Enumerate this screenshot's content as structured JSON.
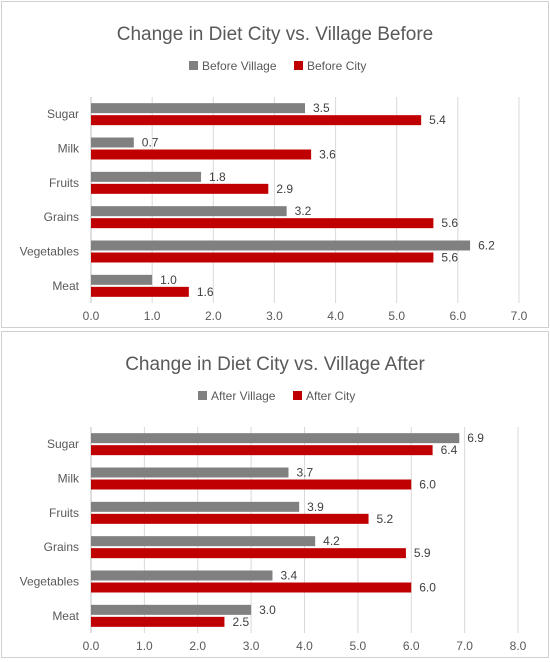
{
  "chart_data": [
    {
      "type": "bar",
      "orientation": "horizontal",
      "title": "Change in Diet City vs. Village Before",
      "categories": [
        "Sugar",
        "Milk",
        "Fruits",
        "Grains",
        "Vegetables",
        "Meat"
      ],
      "series": [
        {
          "name": "Before Village",
          "color": "#808080",
          "values": [
            3.5,
            0.7,
            1.8,
            3.2,
            6.2,
            1.0
          ]
        },
        {
          "name": "Before City",
          "color": "#c00000",
          "values": [
            5.4,
            3.6,
            2.9,
            5.6,
            5.6,
            1.6
          ]
        }
      ],
      "xlim": [
        0,
        7
      ],
      "xticks": [
        "0.0",
        "1.0",
        "2.0",
        "3.0",
        "4.0",
        "5.0",
        "6.0",
        "7.0"
      ],
      "grid": true,
      "legend": "top-center"
    },
    {
      "type": "bar",
      "orientation": "horizontal",
      "title": "Change in Diet City vs. Village After",
      "categories": [
        "Sugar",
        "Milk",
        "Fruits",
        "Grains",
        "Vegetables",
        "Meat"
      ],
      "series": [
        {
          "name": "After Village",
          "color": "#808080",
          "values": [
            6.9,
            3.7,
            3.9,
            4.2,
            3.4,
            3.0
          ]
        },
        {
          "name": "After City",
          "color": "#c00000",
          "values": [
            6.4,
            6.0,
            5.2,
            5.9,
            6.0,
            2.5
          ]
        }
      ],
      "xlim": [
        0,
        8
      ],
      "xticks": [
        "0.0",
        "1.0",
        "2.0",
        "3.0",
        "4.0",
        "5.0",
        "6.0",
        "7.0",
        "8.0"
      ],
      "grid": true,
      "legend": "top-center"
    }
  ]
}
